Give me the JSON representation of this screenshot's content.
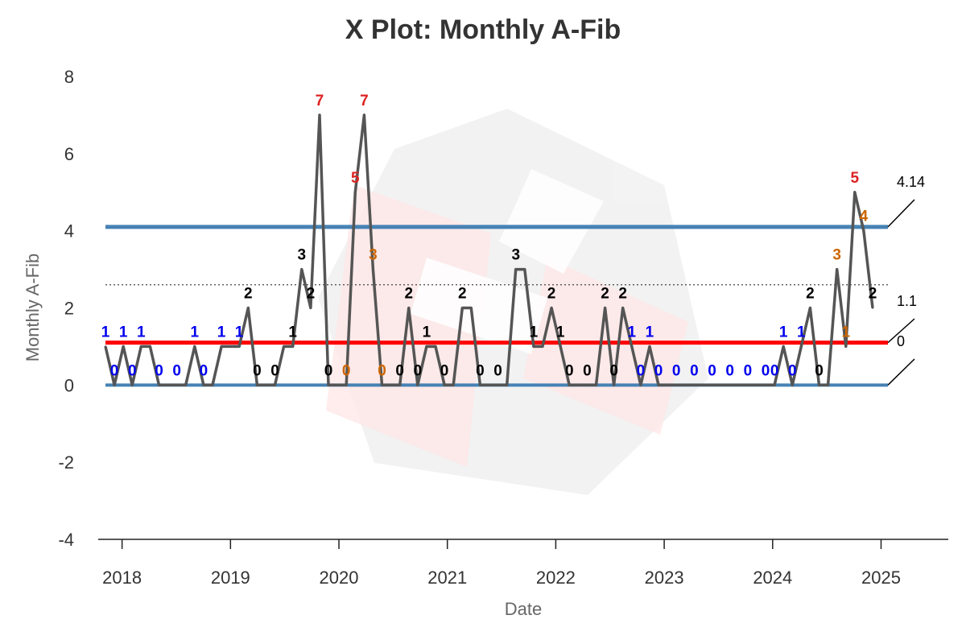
{
  "chart_data": {
    "type": "line",
    "title": "X Plot: Monthly A-Fib",
    "xlabel": "Date",
    "ylabel": "Monthly A-Fib",
    "ylim": [
      -4,
      8
    ],
    "yticks": [
      "-4",
      "-2",
      "0",
      "2",
      "4",
      "6",
      "8"
    ],
    "xticks": [
      {
        "label": "2018",
        "x": 2018
      },
      {
        "label": "2019",
        "x": 2019
      },
      {
        "label": "2020",
        "x": 2020
      },
      {
        "label": "2021",
        "x": 2021
      },
      {
        "label": "2022",
        "x": 2022
      },
      {
        "label": "2023",
        "x": 2023
      },
      {
        "label": "2024",
        "x": 2024
      },
      {
        "label": "2025",
        "x": 2025
      }
    ],
    "xlim": [
      2017.78,
      2025.62
    ],
    "limits": {
      "ucl": {
        "label": "4.14",
        "value": 4.1,
        "color": "#4682b4"
      },
      "center": {
        "label": "1.1",
        "value": 1.1,
        "color": "#ff0000"
      },
      "lcl": {
        "label": "0",
        "value": 0,
        "color": "#4682b4"
      },
      "dotted_line": 2.6
    },
    "line_color": "#555555",
    "label_colors": {
      "blue": "#0000ee",
      "black": "#000000",
      "red": "#dd2222",
      "orange": "#cc6600"
    },
    "series": [
      {
        "values": [
          1,
          0,
          1,
          0,
          1,
          1,
          0,
          0,
          0,
          0,
          1,
          0,
          0,
          1,
          1,
          1,
          2,
          0,
          0,
          0,
          1,
          1,
          3,
          2,
          7,
          0,
          0,
          0,
          5,
          7,
          3,
          0,
          0,
          0,
          2,
          0,
          1,
          1,
          0,
          0,
          2,
          2,
          0,
          0,
          0,
          0,
          3,
          3,
          1,
          1,
          2,
          1,
          0,
          0,
          0,
          0,
          2,
          0,
          2,
          1,
          0,
          1,
          0,
          0,
          0,
          0,
          0,
          0,
          0,
          0,
          0,
          0,
          0,
          0,
          0,
          0,
          1,
          0,
          1,
          2,
          0,
          0,
          3,
          1,
          5,
          4,
          2
        ],
        "point_labels": [
          {
            "i": 0,
            "text": "1",
            "color": "blue"
          },
          {
            "i": 1,
            "text": "0",
            "color": "blue"
          },
          {
            "i": 2,
            "text": "1",
            "color": "blue"
          },
          {
            "i": 3,
            "text": "0",
            "color": "blue"
          },
          {
            "i": 4,
            "text": "1",
            "color": "blue"
          },
          {
            "i": 6,
            "text": "0",
            "color": "blue"
          },
          {
            "i": 8,
            "text": "0",
            "color": "blue"
          },
          {
            "i": 10,
            "text": "1",
            "color": "blue"
          },
          {
            "i": 11,
            "text": "0",
            "color": "blue"
          },
          {
            "i": 13,
            "text": "1",
            "color": "blue"
          },
          {
            "i": 15,
            "text": "1",
            "color": "blue"
          },
          {
            "i": 16,
            "text": "2",
            "color": "black"
          },
          {
            "i": 17,
            "text": "0",
            "color": "black"
          },
          {
            "i": 19,
            "text": "0",
            "color": "black"
          },
          {
            "i": 21,
            "text": "1",
            "color": "black"
          },
          {
            "i": 22,
            "text": "3",
            "color": "black"
          },
          {
            "i": 23,
            "text": "2",
            "color": "black"
          },
          {
            "i": 24,
            "text": "7",
            "color": "red"
          },
          {
            "i": 25,
            "text": "0",
            "color": "black"
          },
          {
            "i": 27,
            "text": "0",
            "color": "orange"
          },
          {
            "i": 28,
            "text": "5",
            "color": "red"
          },
          {
            "i": 29,
            "text": "7",
            "color": "red"
          },
          {
            "i": 30,
            "text": "3",
            "color": "orange"
          },
          {
            "i": 31,
            "text": "0",
            "color": "orange"
          },
          {
            "i": 33,
            "text": "0",
            "color": "black"
          },
          {
            "i": 34,
            "text": "2",
            "color": "black"
          },
          {
            "i": 35,
            "text": "0",
            "color": "black"
          },
          {
            "i": 36,
            "text": "1",
            "color": "black"
          },
          {
            "i": 38,
            "text": "0",
            "color": "black"
          },
          {
            "i": 40,
            "text": "2",
            "color": "black"
          },
          {
            "i": 42,
            "text": "0",
            "color": "black"
          },
          {
            "i": 44,
            "text": "0",
            "color": "black"
          },
          {
            "i": 46,
            "text": "3",
            "color": "black"
          },
          {
            "i": 48,
            "text": "1",
            "color": "black"
          },
          {
            "i": 50,
            "text": "2",
            "color": "black"
          },
          {
            "i": 51,
            "text": "1",
            "color": "black"
          },
          {
            "i": 52,
            "text": "0",
            "color": "black"
          },
          {
            "i": 54,
            "text": "0",
            "color": "black"
          },
          {
            "i": 56,
            "text": "2",
            "color": "black"
          },
          {
            "i": 57,
            "text": "0",
            "color": "black"
          },
          {
            "i": 58,
            "text": "2",
            "color": "black"
          },
          {
            "i": 59,
            "text": "1",
            "color": "blue"
          },
          {
            "i": 60,
            "text": "0",
            "color": "blue"
          },
          {
            "i": 61,
            "text": "1",
            "color": "blue"
          },
          {
            "i": 62,
            "text": "0",
            "color": "blue"
          },
          {
            "i": 64,
            "text": "0",
            "color": "blue"
          },
          {
            "i": 66,
            "text": "0",
            "color": "blue"
          },
          {
            "i": 68,
            "text": "0",
            "color": "blue"
          },
          {
            "i": 70,
            "text": "0",
            "color": "blue"
          },
          {
            "i": 72,
            "text": "0",
            "color": "blue"
          },
          {
            "i": 74,
            "text": "0",
            "color": "blue"
          },
          {
            "i": 75,
            "text": "0",
            "color": "blue"
          },
          {
            "i": 76,
            "text": "1",
            "color": "blue"
          },
          {
            "i": 77,
            "text": "0",
            "color": "blue"
          },
          {
            "i": 78,
            "text": "1",
            "color": "blue"
          },
          {
            "i": 79,
            "text": "2",
            "color": "black"
          },
          {
            "i": 80,
            "text": "0",
            "color": "black"
          },
          {
            "i": 82,
            "text": "3",
            "color": "orange"
          },
          {
            "i": 83,
            "text": "1",
            "color": "orange"
          },
          {
            "i": 84,
            "text": "5",
            "color": "red"
          },
          {
            "i": 85,
            "text": "4",
            "color": "orange"
          },
          {
            "i": 86,
            "text": "2",
            "color": "black"
          }
        ]
      }
    ]
  }
}
